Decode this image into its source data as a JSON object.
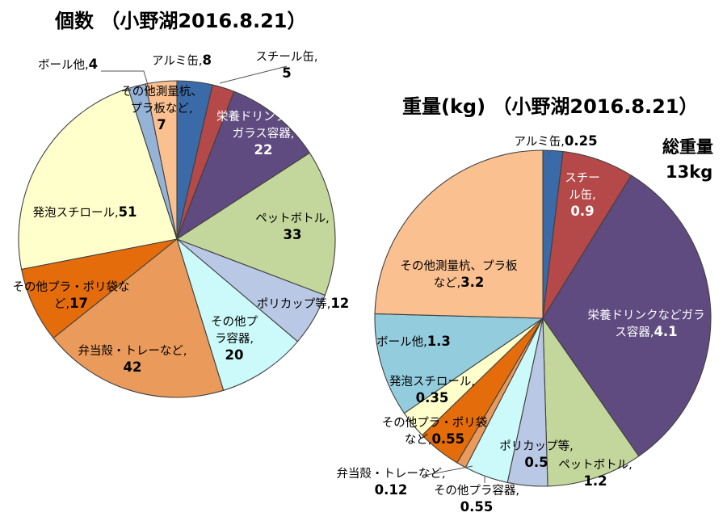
{
  "chart_data": [
    {
      "type": "pie",
      "title": "個数 （小野湖2016.8.21）",
      "slices": [
        {
          "name": "アルミ缶",
          "value": 8,
          "color": "#3B6AA8",
          "label_lines": [
            "アルミ缶,8"
          ]
        },
        {
          "name": "スチール缶",
          "value": 5,
          "color": "#B54848",
          "label_lines": [
            "スチール缶,",
            "5"
          ]
        },
        {
          "name": "栄養ドリンクなどガラス容器",
          "value": 22,
          "color": "#5F4B80",
          "label_lines": [
            "栄養ドリンクなど",
            "ガラス容器,",
            "22"
          ]
        },
        {
          "name": "ペットボトル",
          "value": 33,
          "color": "#C3D69B",
          "label_lines": [
            "ペットボトル,",
            "33"
          ]
        },
        {
          "name": "ポリカップ等",
          "value": 12,
          "color": "#B9C8E4",
          "label_lines": [
            "ポリカップ等,12"
          ]
        },
        {
          "name": "その他プラ容器",
          "value": 20,
          "color": "#CCFAFA",
          "label_lines": [
            "その他プ",
            "ラ容器,",
            "20"
          ]
        },
        {
          "name": "弁当殻・トレーなど",
          "value": 42,
          "color": "#EA9A5A",
          "label_lines": [
            "弁当殻・トレーなど,",
            "42"
          ]
        },
        {
          "name": "その他プラ・ポリ袋など",
          "value": 17,
          "color": "#E46C0A",
          "label_lines": [
            "その他プラ・ポリ袋な",
            "ど,17"
          ]
        },
        {
          "name": "発泡スチロール",
          "value": 51,
          "color": "#FFFFCC",
          "label_lines": [
            "発泡スチロール,51"
          ]
        },
        {
          "name": "ボール他",
          "value": 4,
          "color": "#95B3D7",
          "label_lines": [
            "ボール他,4"
          ]
        },
        {
          "name": "その他測量杭、プラ板など",
          "value": 7,
          "color": "#FAC090",
          "label_lines": [
            "その他測量杭、",
            "プラ板など,",
            "7"
          ]
        }
      ]
    },
    {
      "type": "pie",
      "title": "重量(kg) （小野湖2016.8.21）",
      "total_label": "総重量",
      "total_value": "13kg",
      "slices": [
        {
          "name": "アルミ缶",
          "value": 0.25,
          "color": "#3B6AA8",
          "label_lines": [
            "アルミ缶,0.25"
          ]
        },
        {
          "name": "スチール缶",
          "value": 0.9,
          "color": "#B54848",
          "label_lines": [
            "スチー",
            "ル缶,",
            "0.9"
          ]
        },
        {
          "name": "栄養ドリンクなどガラス容器",
          "value": 4.1,
          "color": "#5F4B80",
          "label_lines": [
            "栄養ドリンクなどガラ",
            "ス容器,4.1"
          ]
        },
        {
          "name": "ペットボトル",
          "value": 1.2,
          "color": "#C3D69B",
          "label_lines": [
            "ペットボトル,",
            "1.2"
          ]
        },
        {
          "name": "ポリカップ等",
          "value": 0.5,
          "color": "#B9C8E4",
          "label_lines": [
            "ポリカップ等,",
            "0.5"
          ]
        },
        {
          "name": "その他プラ容器",
          "value": 0.55,
          "color": "#CCFAFA",
          "label_lines": [
            "その他プラ容器,",
            "0.55"
          ]
        },
        {
          "name": "弁当殻・トレーなど",
          "value": 0.12,
          "color": "#EA9A5A",
          "label_lines": [
            "弁当殻・トレーなど,",
            "0.12"
          ]
        },
        {
          "name": "その他プラ・ポリ袋など",
          "value": 0.55,
          "color": "#E46C0A",
          "label_lines": [
            "その他プラ・ポリ袋",
            "など,0.55"
          ]
        },
        {
          "name": "発泡スチロール",
          "value": 0.35,
          "color": "#FFFFCC",
          "label_lines": [
            "発泡スチロール,",
            "0.35"
          ]
        },
        {
          "name": "ボール他",
          "value": 1.3,
          "color": "#93CDDD",
          "label_lines": [
            "ボール他,1.3"
          ]
        },
        {
          "name": "その他測量杭、プラ板など",
          "value": 3.2,
          "color": "#FAC090",
          "label_lines": [
            "その他測量杭、プラ板",
            "など,3.2"
          ]
        }
      ]
    }
  ]
}
